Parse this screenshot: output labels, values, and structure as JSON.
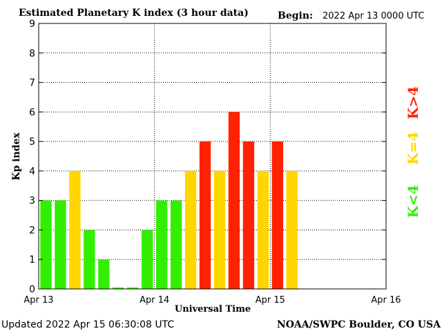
{
  "chart_data": {
    "type": "bar",
    "title": "Estimated Planetary K index (3 hour data)",
    "begin_label": "Begin:",
    "begin_value": "2022 Apr 13 0000 UTC",
    "xlabel": "Universal Time",
    "ylabel": "Kp index",
    "ylim": [
      0,
      9
    ],
    "xlim": [
      0,
      72
    ],
    "y_ticks": [
      "0",
      "1",
      "2",
      "3",
      "4",
      "5",
      "6",
      "7",
      "8",
      "9"
    ],
    "x_tick_labels": [
      "Apr 13",
      "Apr 14",
      "Apr 15",
      "Apr 16"
    ],
    "x_tick_hours": [
      0,
      24,
      48,
      72
    ],
    "grid": "dotted",
    "interval_hours": 3,
    "values": [
      3,
      3,
      4,
      2,
      1,
      0.05,
      0.05,
      2,
      3,
      3,
      4,
      5,
      4,
      6,
      5,
      4,
      5,
      4
    ],
    "legend": [
      {
        "label": "K<4",
        "color": "#33ee00"
      },
      {
        "label": "K=4",
        "color": "#ffd600"
      },
      {
        "label": "K>4",
        "color": "#ff2200"
      }
    ],
    "colors": {
      "low": "#33ee00",
      "mid": "#ffd600",
      "high": "#ff2200",
      "text": "#000000"
    }
  },
  "footer": {
    "updated": "Updated 2022 Apr 15 06:30:08 UTC",
    "source": "NOAA/SWPC Boulder, CO USA"
  }
}
